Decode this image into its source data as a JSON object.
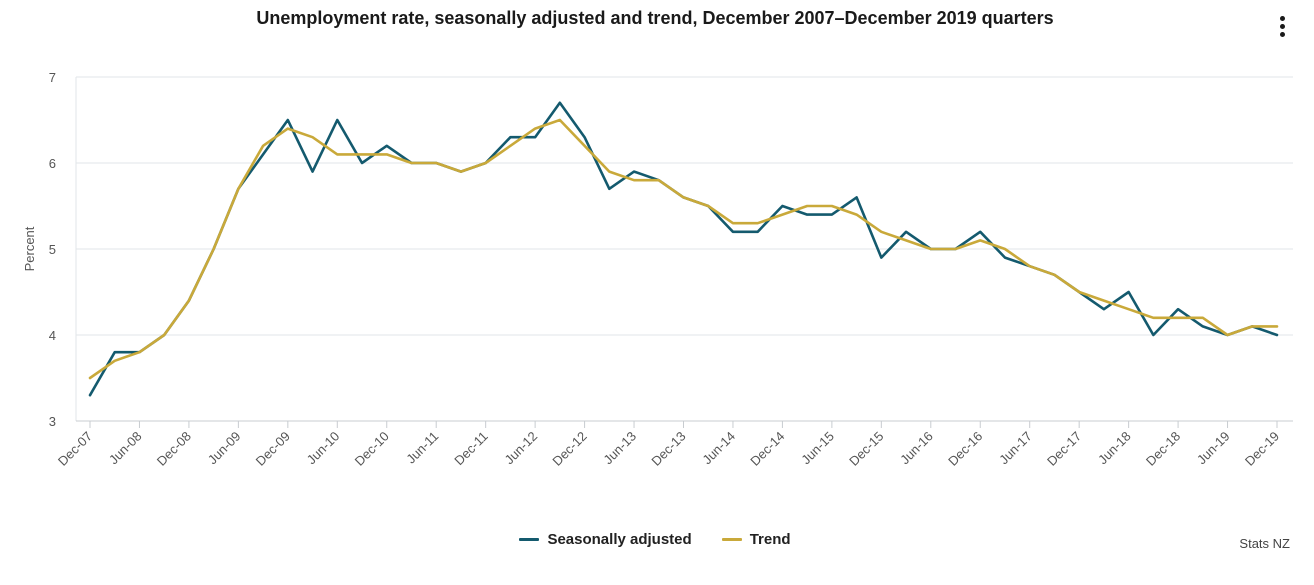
{
  "chart_data": {
    "type": "line",
    "title": "Unemployment rate, seasonally adjusted and trend, December 2007–December 2019 quarters",
    "xlabel": "",
    "ylabel": "Percent",
    "ylim": [
      3,
      7
    ],
    "yticks": [
      3,
      4,
      5,
      6,
      7
    ],
    "grid": true,
    "legend_position": "bottom-center",
    "x": [
      "Dec-07",
      "Mar-08",
      "Jun-08",
      "Sep-08",
      "Dec-08",
      "Mar-09",
      "Jun-09",
      "Sep-09",
      "Dec-09",
      "Mar-10",
      "Jun-10",
      "Sep-10",
      "Dec-10",
      "Mar-11",
      "Jun-11",
      "Sep-11",
      "Dec-11",
      "Mar-12",
      "Jun-12",
      "Sep-12",
      "Dec-12",
      "Mar-13",
      "Jun-13",
      "Sep-13",
      "Dec-13",
      "Mar-14",
      "Jun-14",
      "Sep-14",
      "Dec-14",
      "Mar-15",
      "Jun-15",
      "Sep-15",
      "Dec-15",
      "Mar-16",
      "Jun-16",
      "Sep-16",
      "Dec-16",
      "Mar-17",
      "Jun-17",
      "Sep-17",
      "Dec-17",
      "Mar-18",
      "Jun-18",
      "Sep-18",
      "Dec-18",
      "Mar-19",
      "Jun-19",
      "Sep-19",
      "Dec-19"
    ],
    "tick_labels": [
      "Dec-07",
      "Jun-08",
      "Dec-08",
      "Jun-09",
      "Dec-09",
      "Jun-10",
      "Dec-10",
      "Jun-11",
      "Dec-11",
      "Jun-12",
      "Dec-12",
      "Jun-13",
      "Dec-13",
      "Jun-14",
      "Dec-14",
      "Jun-15",
      "Dec-15",
      "Jun-16",
      "Dec-16",
      "Jun-17",
      "Dec-17",
      "Jun-18",
      "Dec-18",
      "Jun-19",
      "Dec-19"
    ],
    "series": [
      {
        "name": "Seasonally adjusted",
        "color": "#145a6e",
        "values": [
          3.3,
          3.8,
          3.8,
          4.0,
          4.4,
          5.0,
          5.7,
          6.1,
          6.5,
          5.9,
          6.5,
          6.0,
          6.2,
          6.0,
          6.0,
          5.9,
          6.0,
          6.3,
          6.3,
          6.7,
          6.3,
          5.7,
          5.9,
          5.8,
          5.6,
          5.5,
          5.2,
          5.2,
          5.5,
          5.4,
          5.4,
          5.6,
          4.9,
          5.2,
          5.0,
          5.0,
          5.2,
          4.9,
          4.8,
          4.7,
          4.5,
          4.3,
          4.5,
          4.0,
          4.3,
          4.1,
          4.0,
          4.1,
          4.0
        ]
      },
      {
        "name": "Trend",
        "color": "#c9a93a",
        "values": [
          3.5,
          3.7,
          3.8,
          4.0,
          4.4,
          5.0,
          5.7,
          6.2,
          6.4,
          6.3,
          6.1,
          6.1,
          6.1,
          6.0,
          6.0,
          5.9,
          6.0,
          6.2,
          6.4,
          6.5,
          6.2,
          5.9,
          5.8,
          5.8,
          5.6,
          5.5,
          5.3,
          5.3,
          5.4,
          5.5,
          5.5,
          5.4,
          5.2,
          5.1,
          5.0,
          5.0,
          5.1,
          5.0,
          4.8,
          4.7,
          4.5,
          4.4,
          4.3,
          4.2,
          4.2,
          4.2,
          4.0,
          4.1,
          4.1
        ]
      }
    ]
  },
  "menu": {
    "icon": "vertical-ellipsis-icon"
  },
  "credit": "Stats NZ"
}
